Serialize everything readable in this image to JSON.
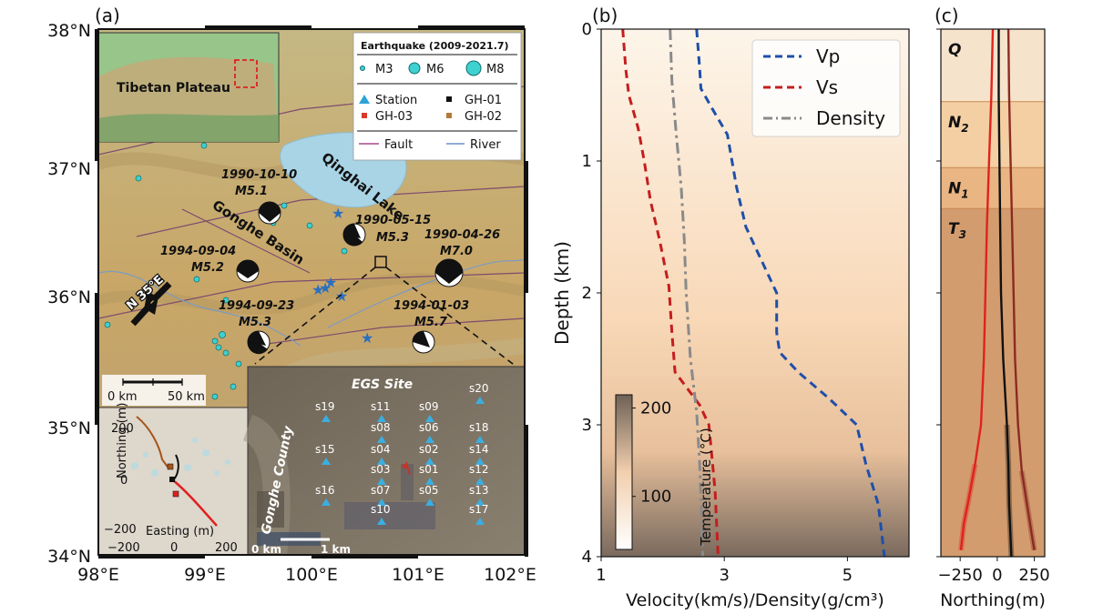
{
  "panels": {
    "a": "(a)",
    "b": "(b)",
    "c": "(c)"
  },
  "map": {
    "lat_ticks": [
      "38°N",
      "37°N",
      "36°N",
      "35°N",
      "34°N"
    ],
    "lon_ticks": [
      "98°E",
      "99°E",
      "100°E",
      "101°E",
      "102°E"
    ],
    "inset_title": "Tibetan Plateau",
    "lake": "Qinghai Lake",
    "basin": "Gonghe Basin",
    "stress": "N 35°E",
    "scalebar": {
      "left": "0 km",
      "right": "50 km"
    },
    "legend": {
      "title": "Earthquake (2009-2021.7)",
      "m3": "M3",
      "m6": "M6",
      "m8": "M8",
      "station": "Station",
      "gh01": "GH-01",
      "gh03": "GH-03",
      "gh02": "GH-02",
      "fault": "Fault",
      "river": "River"
    },
    "events": [
      {
        "date": "1990-10-10",
        "mag": "M5.1"
      },
      {
        "date": "1990-05-15",
        "mag": "M5.3"
      },
      {
        "date": "1990-04-26",
        "mag": "M7.0"
      },
      {
        "date": "1994-09-04",
        "mag": "M5.2"
      },
      {
        "date": "1994-09-23",
        "mag": "M5.3"
      },
      {
        "date": "1994-01-03",
        "mag": "M5.7"
      }
    ],
    "egs": {
      "title": "EGS Site",
      "county": "Gonghe County",
      "scale_left": "0 km",
      "scale_right": "1 km",
      "stations": [
        "s19",
        "s11",
        "s09",
        "s20",
        "s18",
        "s08",
        "s06",
        "s14",
        "s15",
        "s04",
        "s02",
        "s12",
        "s03",
        "s01",
        "s16",
        "s07",
        "s05",
        "s13",
        "s10",
        "s17"
      ]
    },
    "well": {
      "northing_label": "Northing (m)",
      "easting_label": "Easting (m)",
      "x_ticks": [
        "−200",
        "0",
        "200"
      ],
      "y_ticks": [
        "200",
        "0",
        "−200"
      ]
    }
  },
  "chart_data": [
    {
      "type": "line",
      "title": "",
      "xlabel": "Velocity(km/s)/Density(g/cm³)",
      "ylabel": "Depth (km)",
      "xlim": [
        1,
        6
      ],
      "ylim": [
        4,
        0
      ],
      "x_ticks": [
        "1",
        "3",
        "5"
      ],
      "y_ticks": [
        "0",
        "1",
        "2",
        "3",
        "4"
      ],
      "series": [
        {
          "name": "Vp",
          "color": "#1f4fa8",
          "style": "dashed",
          "points": [
            [
              2.55,
              0
            ],
            [
              2.6,
              0.3
            ],
            [
              2.62,
              0.45
            ],
            [
              2.8,
              0.6
            ],
            [
              3.05,
              0.8
            ],
            [
              3.2,
              1.2
            ],
            [
              3.35,
              1.5
            ],
            [
              3.6,
              1.75
            ],
            [
              3.85,
              2.0
            ],
            [
              3.85,
              2.3
            ],
            [
              3.9,
              2.45
            ],
            [
              4.2,
              2.6
            ],
            [
              4.7,
              2.8
            ],
            [
              5.15,
              3.0
            ],
            [
              5.3,
              3.3
            ],
            [
              5.5,
              3.6
            ],
            [
              5.6,
              4.0
            ]
          ]
        },
        {
          "name": "Vs",
          "color": "#c41e1e",
          "style": "dashed",
          "points": [
            [
              1.35,
              0
            ],
            [
              1.4,
              0.3
            ],
            [
              1.45,
              0.5
            ],
            [
              1.6,
              0.75
            ],
            [
              1.7,
              1.0
            ],
            [
              1.8,
              1.3
            ],
            [
              1.95,
              1.6
            ],
            [
              2.1,
              1.95
            ],
            [
              2.15,
              2.3
            ],
            [
              2.2,
              2.6
            ],
            [
              2.6,
              2.85
            ],
            [
              2.75,
              3.0
            ],
            [
              2.85,
              3.5
            ],
            [
              2.9,
              4.0
            ]
          ]
        },
        {
          "name": "Density",
          "color": "#8a8a8a",
          "style": "dashdot",
          "points": [
            [
              2.12,
              0
            ],
            [
              2.15,
              0.4
            ],
            [
              2.22,
              0.8
            ],
            [
              2.3,
              1.2
            ],
            [
              2.35,
              1.6
            ],
            [
              2.38,
              2.0
            ],
            [
              2.45,
              2.5
            ],
            [
              2.55,
              2.9
            ],
            [
              2.6,
              3.3
            ],
            [
              2.63,
              3.7
            ],
            [
              2.65,
              4.0
            ]
          ]
        }
      ],
      "colorbar": {
        "label": "Temperature (°C)",
        "ticks": [
          "100",
          "200"
        ],
        "range": [
          40,
          215
        ]
      },
      "legend_position": "top-right"
    },
    {
      "type": "line",
      "xlabel": "Northing(m)",
      "x_ticks": [
        "−250",
        "0",
        "250"
      ],
      "xlim": [
        -380,
        320
      ],
      "ylim": [
        4,
        0
      ],
      "formations": [
        {
          "label": "Q",
          "sub": "",
          "top": 0,
          "bottom": 0.55,
          "color": "#f6e3cc"
        },
        {
          "label": "N",
          "sub": "2",
          "top": 0.55,
          "bottom": 1.05,
          "color": "#f3cfa3"
        },
        {
          "label": "N",
          "sub": "1",
          "top": 1.05,
          "bottom": 1.36,
          "color": "#e9b582"
        },
        {
          "label": "T",
          "sub": "3",
          "top": 1.36,
          "bottom": 4.0,
          "color": "#d39c6e"
        }
      ],
      "series": [
        {
          "name": "GH-03",
          "color": "#e0231c",
          "points": [
            [
              -30,
              0
            ],
            [
              -40,
              0.5
            ],
            [
              -55,
              1.0
            ],
            [
              -70,
              1.5
            ],
            [
              -80,
              2.0
            ],
            [
              -90,
              2.5
            ],
            [
              -110,
              3.0
            ],
            [
              -150,
              3.3
            ],
            [
              -190,
              3.55
            ],
            [
              -225,
              3.75
            ],
            [
              -245,
              3.95
            ]
          ]
        },
        {
          "name": "GH-01",
          "color": "#111111",
          "points": [
            [
              10,
              0
            ],
            [
              10,
              0.5
            ],
            [
              15,
              1.0
            ],
            [
              20,
              1.5
            ],
            [
              25,
              2.0
            ],
            [
              40,
              2.5
            ],
            [
              65,
              3.0
            ],
            [
              75,
              3.3
            ],
            [
              80,
              3.6
            ],
            [
              95,
              4.0
            ]
          ]
        },
        {
          "name": "GH-02",
          "color": "#8b2b22",
          "points": [
            [
              75,
              0
            ],
            [
              80,
              0.5
            ],
            [
              90,
              1.0
            ],
            [
              100,
              1.5
            ],
            [
              110,
              2.0
            ],
            [
              120,
              2.5
            ],
            [
              140,
              3.0
            ],
            [
              165,
              3.35
            ],
            [
              200,
              3.6
            ],
            [
              235,
              3.85
            ],
            [
              250,
              3.95
            ]
          ]
        }
      ]
    }
  ]
}
